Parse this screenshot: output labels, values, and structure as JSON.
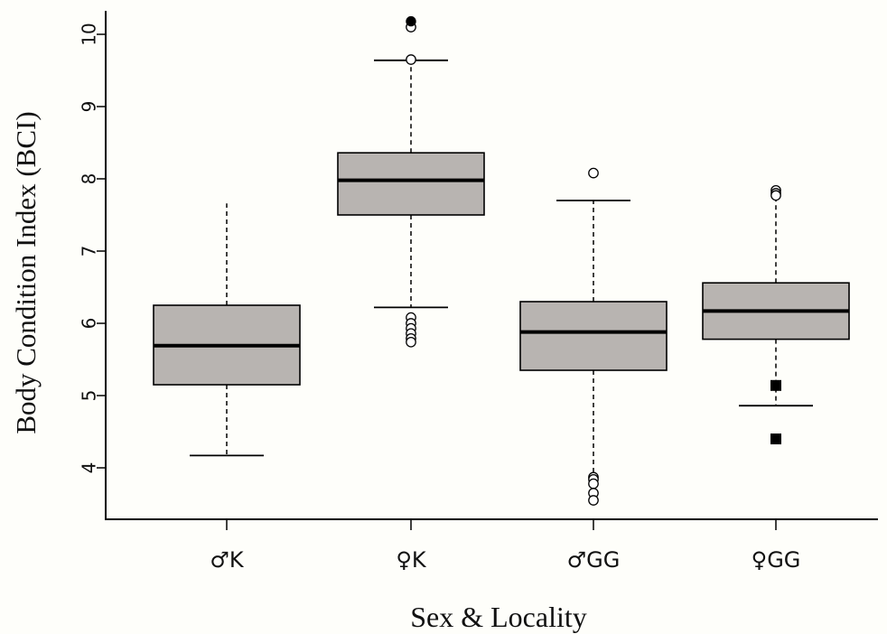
{
  "chart_data": {
    "type": "boxplot",
    "title": "",
    "xlabel": "Sex & Locality",
    "ylabel": "Body Condition Index (BCI)",
    "ylim": [
      3.3,
      10.3
    ],
    "yticks": [
      4,
      5,
      6,
      7,
      8,
      9,
      10
    ],
    "grid": false,
    "colors": {
      "box_fill": "#b8b4b1",
      "stroke": "#000000",
      "background": "#fefefa"
    },
    "categories": [
      "♂K",
      "♀K",
      "♂GG",
      "♀GG"
    ],
    "boxes": [
      {
        "category": "♂K",
        "whisker_low": 4.17,
        "q1": 5.15,
        "median": 5.69,
        "q3": 6.25,
        "whisker_high": 7.66,
        "show_upper_cap": false,
        "show_lower_cap": true,
        "outliers_open": [],
        "outliers_filled": [],
        "outliers_square": []
      },
      {
        "category": "♀K",
        "whisker_low": 6.22,
        "q1": 7.5,
        "median": 7.98,
        "q3": 8.36,
        "whisker_high": 9.64,
        "show_upper_cap": true,
        "show_lower_cap": true,
        "outliers_open": [
          10.1,
          9.65,
          6.08,
          6.0,
          5.93,
          5.86,
          5.79,
          5.74
        ],
        "outliers_filled": [
          10.18
        ],
        "outliers_square": []
      },
      {
        "category": "♂GG",
        "whisker_low": 3.92,
        "q1": 5.35,
        "median": 5.88,
        "q3": 6.3,
        "whisker_high": 7.7,
        "show_upper_cap": true,
        "show_lower_cap": false,
        "outliers_open": [
          8.08,
          3.87,
          3.84,
          3.78,
          3.65,
          3.55
        ],
        "outliers_filled": [],
        "outliers_square": []
      },
      {
        "category": "♀GG",
        "whisker_low": 4.86,
        "q1": 5.78,
        "median": 6.17,
        "q3": 6.56,
        "whisker_high": 7.72,
        "show_upper_cap": false,
        "show_lower_cap": true,
        "outliers_open": [
          7.84,
          7.8,
          7.77
        ],
        "outliers_filled": [],
        "outliers_square": [
          5.14,
          4.4
        ]
      }
    ]
  }
}
